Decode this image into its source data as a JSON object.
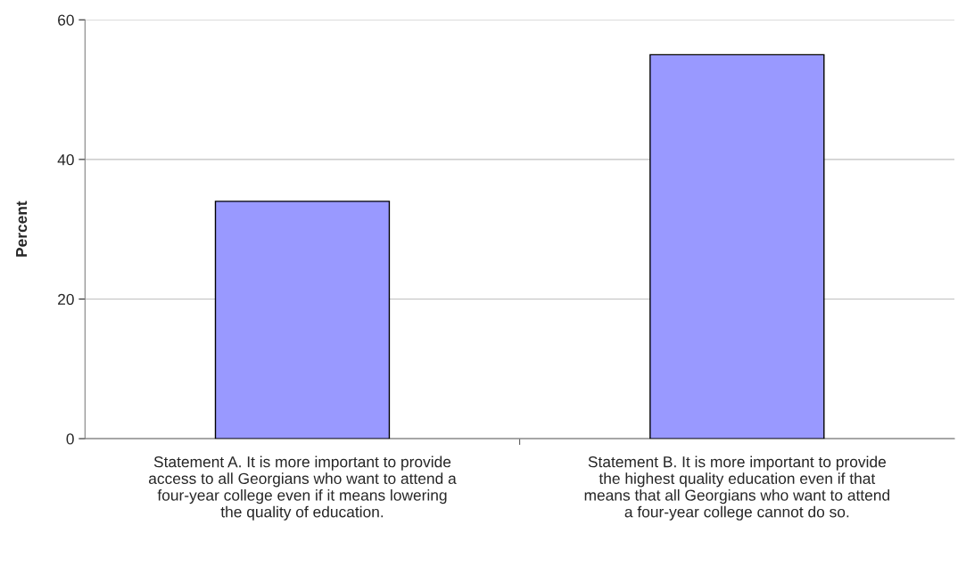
{
  "chart_data": {
    "type": "bar",
    "ylabel": "Percent",
    "categories": [
      "Statement A. It is more important to provide\naccess to all Georgians who want to attend a\nfour-year college even if it means lowering\nthe quality of education.",
      "Statement B. It is more important to provide\nthe highest quality education even if that\nmeans that all Georgians who want to attend\na four-year college cannot do so."
    ],
    "values": [
      34,
      55
    ],
    "color": "#9999ff",
    "ylim": [
      0,
      60
    ],
    "yticks": [
      0,
      20,
      40,
      60
    ],
    "grid": "y"
  }
}
